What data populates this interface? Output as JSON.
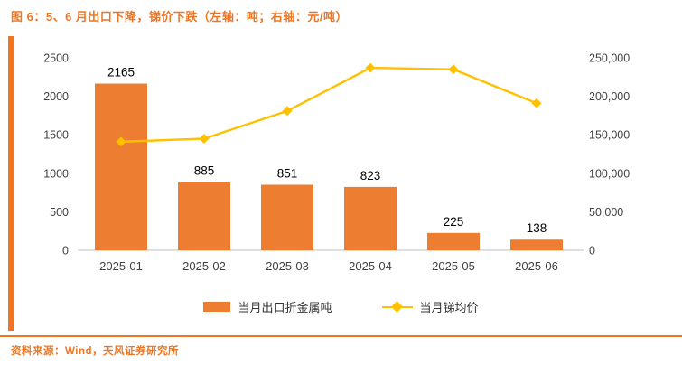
{
  "header": {
    "title": "图 6：5、6 月出口下降，锑价下跌（左轴：吨；右轴：元/吨）"
  },
  "footer": {
    "source": "资料来源：Wind，天风证券研究所"
  },
  "colors": {
    "accent": "#EE7623",
    "bar": "#ED7D31",
    "line": "#FFC000",
    "axis_text": "#404040",
    "label_text": "#000000",
    "axis_line": "#BFBFBF"
  },
  "legend": [
    {
      "label": "当月出口折金属吨",
      "type": "bar"
    },
    {
      "label": "当月锑均价",
      "type": "line"
    }
  ],
  "chart_data": {
    "type": "bar+line",
    "title": "图 6：5、6 月出口下降，锑价下跌（左轴：吨；右轴：元/吨）",
    "categories": [
      "2025-01",
      "2025-02",
      "2025-03",
      "2025-04",
      "2025-05",
      "2025-06"
    ],
    "series": [
      {
        "name": "当月出口折金属吨",
        "type": "bar",
        "axis": "left",
        "values": [
          2165,
          885,
          851,
          823,
          225,
          138
        ]
      },
      {
        "name": "当月锑均价",
        "type": "line",
        "axis": "right",
        "values": [
          141000,
          145000,
          181000,
          237000,
          235000,
          191000
        ]
      }
    ],
    "left_axis": {
      "min": 0,
      "max": 2500,
      "step": 500,
      "unit": "吨"
    },
    "right_axis": {
      "min": 0,
      "max": 250000,
      "step": 50000,
      "unit": "元/吨"
    },
    "grid": false,
    "legend_position": "bottom",
    "bar_labels_visible": true
  }
}
